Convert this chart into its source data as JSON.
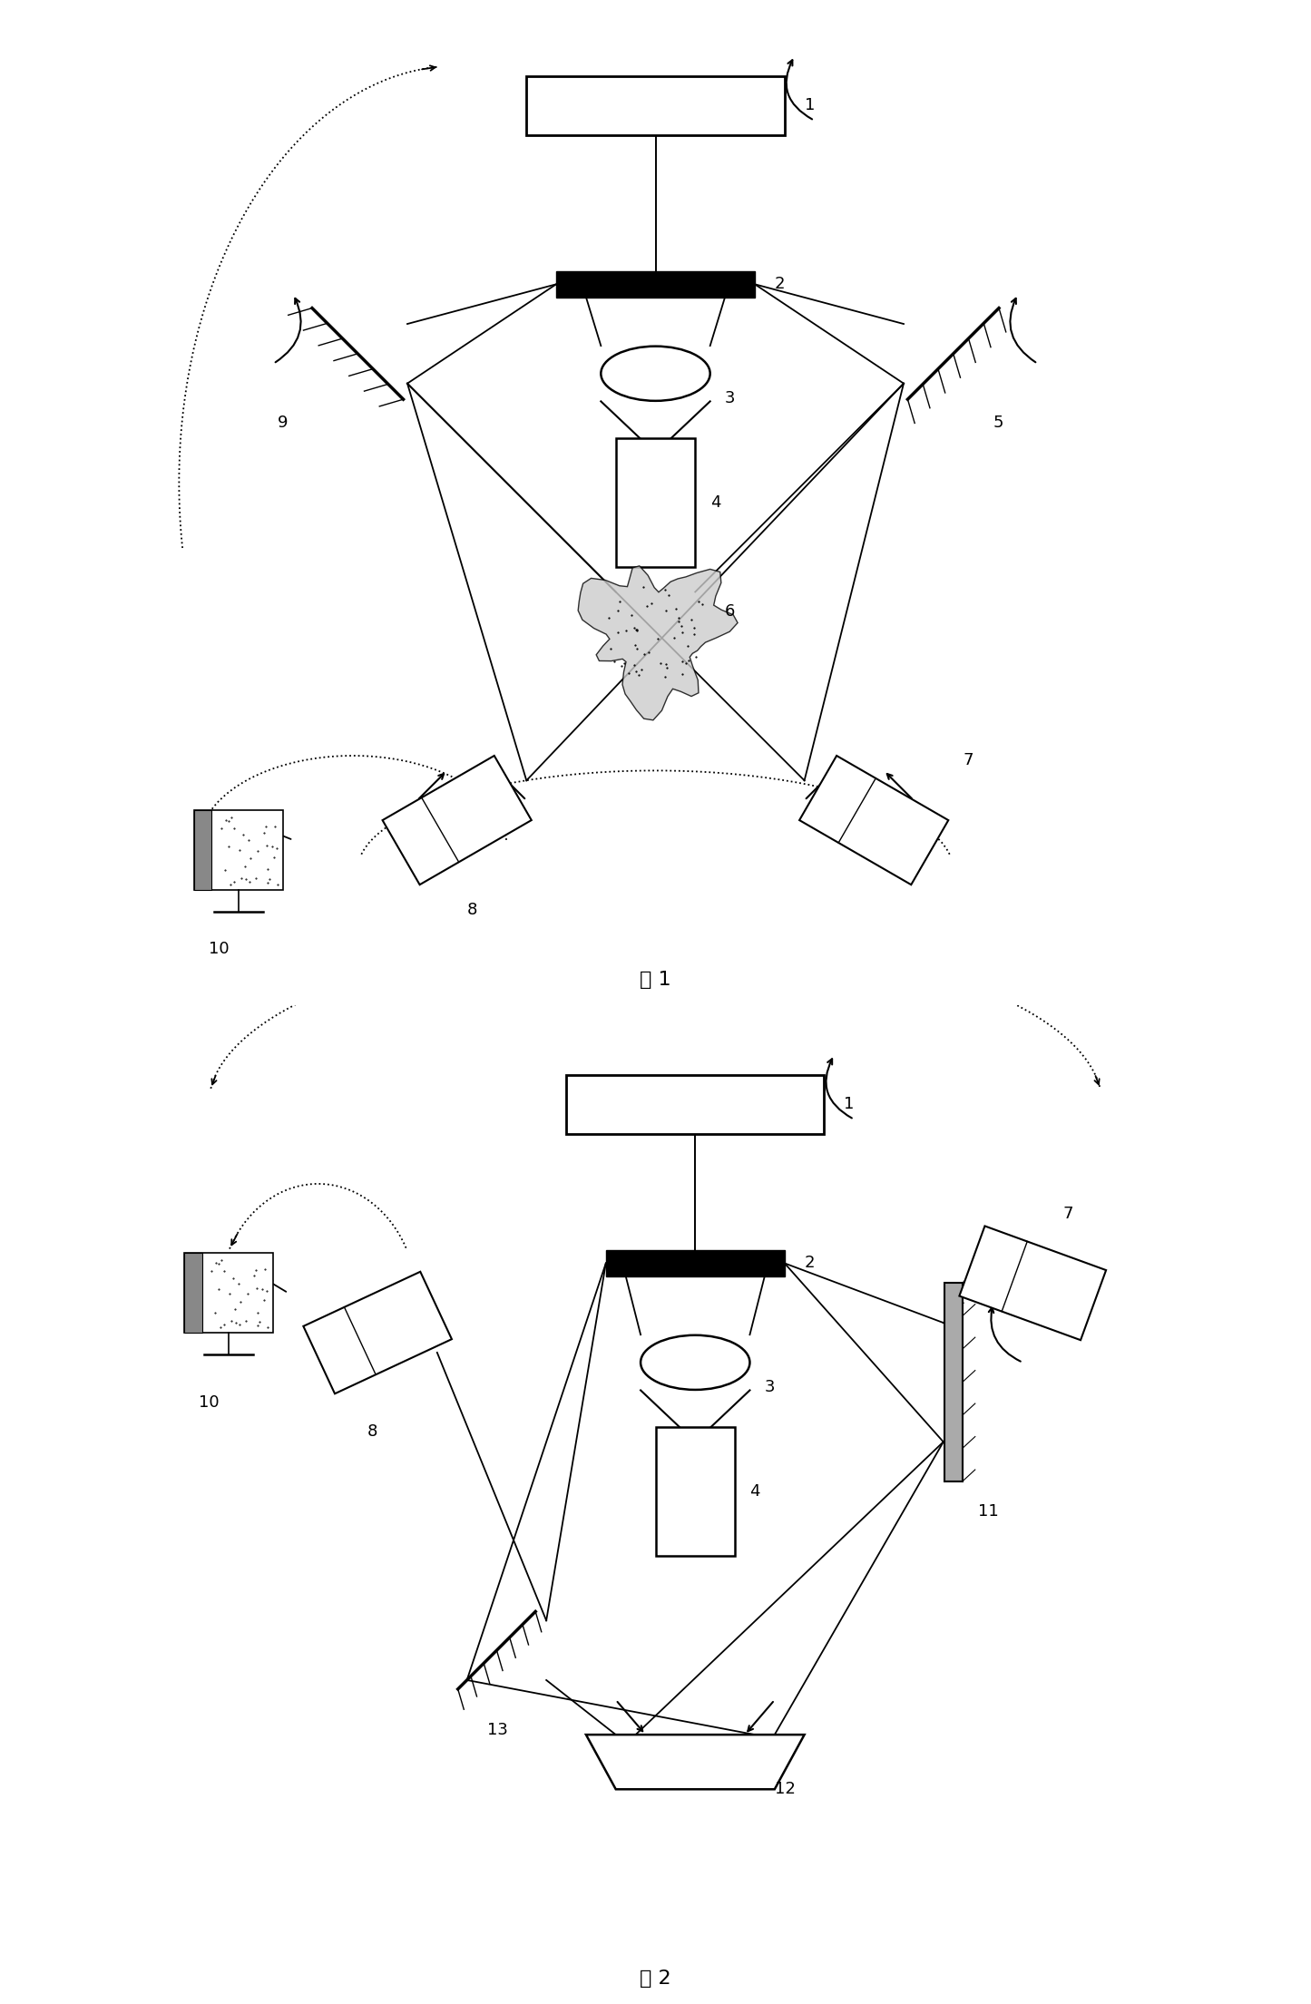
{
  "fig_width": 14.45,
  "fig_height": 22.09,
  "bg_color": "#ffffff",
  "line_color": "#000000",
  "label_fontsize": 13,
  "caption_fontsize": 16,
  "fig1_caption": "图 1",
  "fig2_caption": "图 2"
}
